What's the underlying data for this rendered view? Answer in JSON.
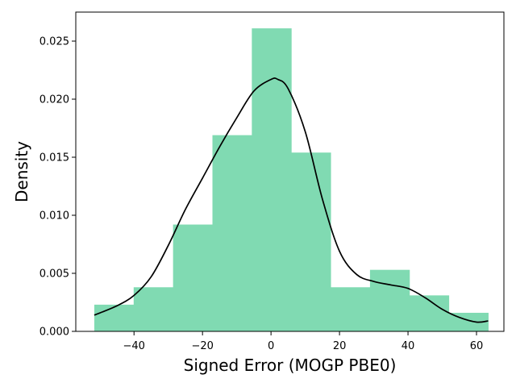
{
  "chart_data": {
    "type": "bar",
    "xlabel": "Signed Error (MOGP PBE0)",
    "ylabel": "Density",
    "xlim": [
      -57,
      68
    ],
    "ylim": [
      0,
      0.0275
    ],
    "xticks": [
      -40,
      -20,
      0,
      20,
      40,
      60
    ],
    "xtick_labels": [
      "−40",
      "−20",
      "0",
      "20",
      "40",
      "60"
    ],
    "yticks": [
      0,
      0.005,
      0.01,
      0.015,
      0.02,
      0.025
    ],
    "ytick_labels": [
      "0.000",
      "0.005",
      "0.010",
      "0.015",
      "0.020",
      "0.025"
    ],
    "grid": false,
    "histogram": {
      "color": "#80dab2",
      "bins": [
        {
          "x0": -51.6,
          "x1": -40.1,
          "density": 0.0023
        },
        {
          "x0": -40.1,
          "x1": -28.6,
          "density": 0.0038
        },
        {
          "x0": -28.6,
          "x1": -17.1,
          "density": 0.0092
        },
        {
          "x0": -17.1,
          "x1": -5.6,
          "density": 0.0169
        },
        {
          "x0": -5.6,
          "x1": 5.9,
          "density": 0.0261
        },
        {
          "x0": 5.9,
          "x1": 17.4,
          "density": 0.0154
        },
        {
          "x0": 17.4,
          "x1": 28.9,
          "density": 0.0038
        },
        {
          "x0": 28.9,
          "x1": 40.4,
          "density": 0.0053
        },
        {
          "x0": 40.4,
          "x1": 51.9,
          "density": 0.0031
        },
        {
          "x0": 51.9,
          "x1": 63.4,
          "density": 0.0016
        }
      ]
    },
    "kde": {
      "color": "#000000",
      "x": [
        -51.6,
        -45,
        -40,
        -35,
        -30,
        -25,
        -20,
        -15,
        -10,
        -5,
        0,
        2,
        5,
        10,
        15,
        20,
        25,
        30,
        35,
        40,
        45,
        50,
        55,
        60,
        63.4
      ],
      "y": [
        0.0014,
        0.0022,
        0.0031,
        0.0047,
        0.0074,
        0.0105,
        0.0132,
        0.0159,
        0.0184,
        0.0207,
        0.0217,
        0.0217,
        0.0209,
        0.0172,
        0.0114,
        0.0069,
        0.0049,
        0.0043,
        0.004,
        0.0037,
        0.0029,
        0.0019,
        0.0012,
        0.0008,
        0.0009
      ]
    }
  }
}
